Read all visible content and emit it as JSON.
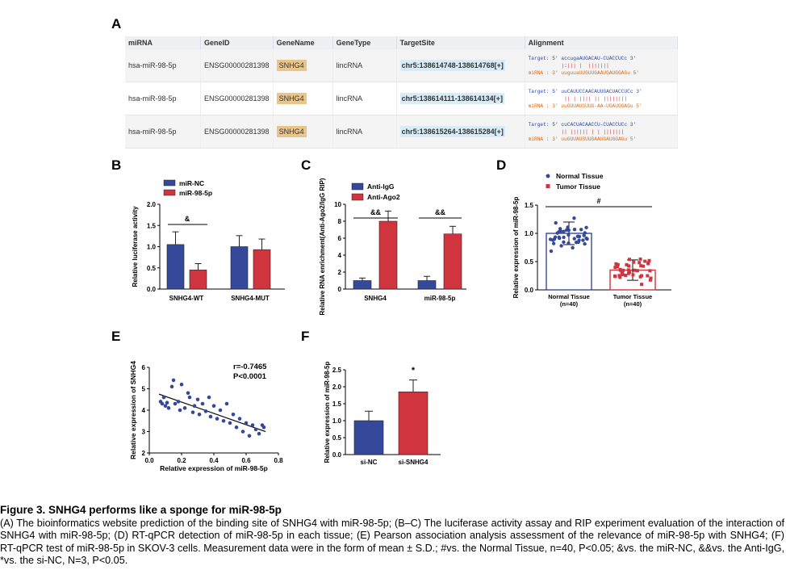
{
  "panel_labels": {
    "A": "A",
    "B": "B",
    "C": "C",
    "D": "D",
    "E": "E",
    "F": "F"
  },
  "tableA": {
    "headers": [
      "miRNA",
      "GeneID",
      "GeneName",
      "GeneType",
      "TargetSite",
      "Alignment"
    ],
    "rows": [
      {
        "mirna": "hsa-miR-98-5p",
        "geneid": "ENSG00000281398",
        "genename": "SNHG4",
        "genetype": "lincRNA",
        "site": "chr5:138614748-138614768[+]",
        "aln_target": "Target: 5' accugaAUGACAU-CUACCUCc 3'",
        "aln_match": "           |:||| |  |||||||",
        "aln_mirna": "miRNA : 3' uuguuaUUGUUGAAUGAUGGAGu 5'"
      },
      {
        "mirna": "hsa-miR-98-5p",
        "geneid": "ENSG00000281398",
        "genename": "SNHG4",
        "genetype": "lincRNA",
        "site": "chr5:138614111-138614134[+]",
        "aln_target": "Target: 5' uuCAUUCCAACAUUGACUACCUCc 3'",
        "aln_match": "            || | |||| || ||||||||",
        "aln_mirna": "miRNA : 3' uuGUUAUGUUG-AA-UGAUGGAGu 5'"
      },
      {
        "mirna": "hsa-miR-98-5p",
        "geneid": "ENSG00000281398",
        "genename": "SNHG4",
        "genetype": "lincRNA",
        "site": "chr5:138615264-138615284[+]",
        "aln_target": "Target: 5' cuCACUACAACCU-CUACCUCc 3'",
        "aln_match": "           || |||||| | | |||||||",
        "aln_mirna": "miRNA : 3' uuGUUAUGUUGAAUGAUGGAGu 5'"
      }
    ]
  },
  "chart_data": [
    {
      "panel": "B",
      "type": "bar",
      "ylabel": "Relative luciferase activity",
      "ylim": [
        0,
        2.0
      ],
      "yticks": [
        "0.0",
        "0.5",
        "1.0",
        "1.5",
        "2.0"
      ],
      "categories": [
        "SNHG4-WT",
        "SNHG4-MUT"
      ],
      "series": [
        {
          "name": "miR-NC",
          "color": "#34499a",
          "values": [
            1.05,
            1.0
          ],
          "err": [
            0.3,
            0.26
          ]
        },
        {
          "name": "miR-98-5p",
          "color": "#d0353f",
          "values": [
            0.45,
            0.93
          ],
          "err": [
            0.15,
            0.25
          ]
        }
      ],
      "annotations": [
        "&"
      ]
    },
    {
      "panel": "C",
      "type": "bar",
      "ylabel": "Relative RNA enrichment(Anti-Ago2/IgG RIP)",
      "ylim": [
        0,
        10
      ],
      "yticks": [
        "0",
        "2",
        "4",
        "6",
        "8",
        "10"
      ],
      "categories": [
        "SNHG4",
        "miR-98-5p"
      ],
      "series": [
        {
          "name": "Anti-IgG",
          "color": "#34499a",
          "values": [
            1.0,
            1.0
          ],
          "err": [
            0.3,
            0.5
          ]
        },
        {
          "name": "Anti-Ago2",
          "color": "#d0353f",
          "values": [
            8.0,
            6.5
          ],
          "err": [
            1.2,
            0.9
          ]
        }
      ],
      "annotations": [
        "&&",
        "&&"
      ]
    },
    {
      "panel": "D",
      "type": "scatter",
      "ylabel": "Relative expression of miR-98-5p",
      "ylim": [
        0,
        1.5
      ],
      "yticks": [
        "0.0",
        "0.5",
        "1.0",
        "1.5"
      ],
      "categories": [
        "Normal Tissue\n(n=40)",
        "Tumor Tissue\n(n=40)"
      ],
      "series": [
        {
          "name": "Normal Tissue",
          "color": "#34499a",
          "mean": 1.0,
          "sd": 0.2
        },
        {
          "name": "Tumor Tissue",
          "color": "#d0353f",
          "mean": 0.35,
          "sd": 0.18
        }
      ],
      "annotations": [
        "#"
      ]
    },
    {
      "panel": "E",
      "type": "scatter",
      "xlabel": "Relative expression of miR-98-5p",
      "ylabel": "Relative expression of SNHG4",
      "xlim": [
        0,
        0.8
      ],
      "ylim": [
        2,
        6
      ],
      "xticks": [
        "0.0",
        "0.2",
        "0.4",
        "0.6",
        "0.8"
      ],
      "yticks": [
        "2",
        "3",
        "4",
        "5",
        "6"
      ],
      "r_text": "r=-0.7465",
      "p_text": "P<0.0001",
      "fit": {
        "x": [
          0.06,
          0.72
        ],
        "y": [
          4.75,
          3.0
        ]
      },
      "points": [
        [
          0.07,
          4.4
        ],
        [
          0.08,
          4.3
        ],
        [
          0.09,
          4.6
        ],
        [
          0.1,
          4.2
        ],
        [
          0.11,
          4.35
        ],
        [
          0.12,
          4.1
        ],
        [
          0.14,
          5.1
        ],
        [
          0.15,
          5.4
        ],
        [
          0.16,
          4.3
        ],
        [
          0.18,
          4.4
        ],
        [
          0.19,
          4.0
        ],
        [
          0.2,
          5.2
        ],
        [
          0.22,
          4.1
        ],
        [
          0.24,
          4.8
        ],
        [
          0.25,
          4.6
        ],
        [
          0.27,
          3.9
        ],
        [
          0.28,
          4.2
        ],
        [
          0.3,
          4.5
        ],
        [
          0.31,
          3.8
        ],
        [
          0.33,
          4.3
        ],
        [
          0.35,
          3.95
        ],
        [
          0.37,
          4.6
        ],
        [
          0.38,
          3.7
        ],
        [
          0.4,
          4.2
        ],
        [
          0.42,
          3.6
        ],
        [
          0.44,
          4.0
        ],
        [
          0.46,
          3.5
        ],
        [
          0.48,
          4.3
        ],
        [
          0.5,
          3.4
        ],
        [
          0.52,
          3.8
        ],
        [
          0.54,
          3.2
        ],
        [
          0.56,
          3.6
        ],
        [
          0.58,
          3.0
        ],
        [
          0.6,
          3.4
        ],
        [
          0.62,
          2.8
        ],
        [
          0.64,
          3.3
        ],
        [
          0.66,
          3.1
        ],
        [
          0.68,
          2.9
        ],
        [
          0.7,
          3.3
        ],
        [
          0.71,
          3.2
        ]
      ]
    },
    {
      "panel": "F",
      "type": "bar",
      "ylabel": "Relative expression of miR-98-5p",
      "ylim": [
        0,
        2.5
      ],
      "yticks": [
        "0.0",
        "0.5",
        "1.0",
        "1.5",
        "2.0",
        "2.5"
      ],
      "categories": [
        "si-NC",
        "si-SNHG4"
      ],
      "series": [
        {
          "name": "",
          "colors": [
            "#34499a",
            "#d0353f"
          ],
          "values": [
            1.0,
            1.85
          ],
          "err": [
            0.28,
            0.35
          ]
        }
      ],
      "annotations": [
        "*"
      ]
    }
  ],
  "caption": {
    "title": "Figure 3. SNHG4 performs like a sponge for miR-98-5p",
    "body": "(A) The bioinformatics website prediction of the binding site of SNHG4 with miR-98-5p; (B–C) The luciferase activity assay and RIP experiment evaluation of the interaction of SNHG4 with miR-98-5p; (D) RT-qPCR detection of miR-98-5p in each tissue; (E) Pearson association analysis assessment of the relevance of miR-98-5p with SNHG4; (F) RT-qPCR test of miR-98-5p in SKOV-3 cells. Measurement data were in the form of mean ± S.D.; #vs. the Normal Tissue, n=40, P<0.05; &vs. the miR-NC, &&vs. the Anti-IgG, *vs. the si-NC, N=3, P<0.05."
  }
}
